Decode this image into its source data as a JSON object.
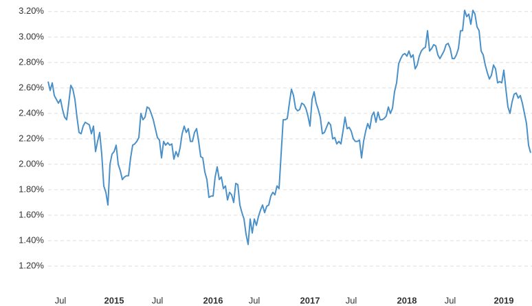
{
  "chart_data": {
    "type": "line",
    "color": "#4a90c8",
    "grid": true,
    "ylim": [
      1.0,
      3.28
    ],
    "yticks": [
      {
        "value": 1.2,
        "label": "1.20%"
      },
      {
        "value": 1.4,
        "label": "1.40%"
      },
      {
        "value": 1.6,
        "label": "1.60%"
      },
      {
        "value": 1.8,
        "label": "1.80%"
      },
      {
        "value": 2.0,
        "label": "2.00%"
      },
      {
        "value": 2.2,
        "label": "2.20%"
      },
      {
        "value": 2.4,
        "label": "2.40%"
      },
      {
        "value": 2.6,
        "label": "2.60%"
      },
      {
        "value": 2.8,
        "label": "2.80%"
      },
      {
        "value": 3.0,
        "label": "3.00%"
      },
      {
        "value": 3.2,
        "label": "3.20%"
      }
    ],
    "categories": [
      null,
      null,
      null,
      null,
      null,
      null,
      "Jul",
      null,
      null,
      null,
      null,
      null,
      null,
      null,
      null,
      null,
      null,
      null,
      null,
      null,
      null,
      null,
      null,
      null,
      null,
      null,
      null,
      null,
      null,
      null,
      null,
      null,
      "2015",
      null,
      null,
      null,
      null,
      null,
      null,
      null,
      null,
      null,
      null,
      null,
      null,
      null,
      null,
      null,
      null,
      null,
      null,
      null,
      null,
      "Jul",
      null,
      null,
      null,
      null,
      null,
      null,
      null,
      null,
      null,
      null,
      null,
      null,
      null,
      null,
      null,
      null,
      null,
      null,
      null,
      null,
      null,
      null,
      null,
      null,
      null,
      null,
      "2016",
      null,
      null,
      null,
      null,
      null,
      null,
      null,
      null,
      null,
      null,
      null,
      null,
      null,
      null,
      null,
      null,
      null,
      null,
      null,
      "Jul",
      null,
      null,
      null,
      null,
      null,
      null,
      null,
      null,
      null,
      null,
      null,
      null,
      null,
      null,
      null,
      null,
      null,
      null,
      null,
      null,
      null,
      null,
      null,
      null,
      null,
      null,
      "2017",
      null,
      null,
      null,
      null,
      null,
      null,
      null,
      null,
      null,
      null,
      null,
      null,
      null,
      null,
      null,
      null,
      null,
      null,
      null,
      "Jul",
      null,
      null,
      null,
      null,
      null,
      null,
      null,
      null,
      null,
      null,
      null,
      null,
      null,
      null,
      null,
      null,
      null,
      null,
      null,
      null,
      null,
      null,
      null,
      null,
      null,
      null,
      "2018",
      null,
      null,
      null,
      null,
      null,
      null,
      null,
      null,
      null,
      null,
      null,
      null,
      null,
      null,
      null,
      null,
      null,
      null,
      null,
      null,
      "Jul",
      null,
      null,
      null,
      null,
      null,
      null,
      null,
      null,
      null,
      null,
      null,
      null,
      null,
      null,
      null,
      null,
      null,
      null,
      null,
      null,
      null,
      null,
      null,
      null,
      null,
      "2019",
      null,
      null,
      null,
      null,
      null,
      null,
      null,
      null,
      null,
      null,
      null,
      null,
      null
    ],
    "values": [
      2.65,
      2.58,
      2.64,
      2.54,
      2.51,
      2.48,
      2.51,
      2.43,
      2.37,
      2.35,
      2.48,
      2.62,
      2.59,
      2.51,
      2.37,
      2.25,
      2.24,
      2.3,
      2.33,
      2.32,
      2.31,
      2.24,
      2.3,
      2.1,
      2.18,
      2.25,
      2.08,
      1.83,
      1.78,
      1.68,
      2.0,
      2.08,
      2.1,
      2.15,
      2.0,
      1.95,
      1.88,
      1.9,
      1.91,
      1.91,
      2.05,
      2.15,
      2.16,
      2.18,
      2.21,
      2.4,
      2.35,
      2.37,
      2.45,
      2.44,
      2.4,
      2.35,
      2.28,
      2.21,
      2.19,
      2.05,
      2.18,
      2.15,
      2.17,
      2.15,
      2.16,
      2.04,
      2.1,
      2.06,
      2.13,
      2.24,
      2.3,
      2.25,
      2.28,
      2.18,
      2.18,
      2.25,
      2.28,
      2.18,
      2.06,
      2.05,
      1.94,
      1.88,
      1.74,
      1.75,
      1.75,
      1.9,
      1.98,
      1.88,
      1.9,
      1.81,
      1.83,
      1.72,
      1.78,
      1.76,
      1.7,
      1.85,
      1.84,
      1.68,
      1.62,
      1.57,
      1.45,
      1.37,
      1.57,
      1.46,
      1.57,
      1.52,
      1.59,
      1.64,
      1.68,
      1.62,
      1.67,
      1.68,
      1.75,
      1.78,
      1.76,
      1.83,
      1.81,
      2.08,
      2.35,
      2.35,
      2.36,
      2.48,
      2.59,
      2.54,
      2.44,
      2.42,
      2.43,
      2.48,
      2.47,
      2.44,
      2.38,
      2.3,
      2.51,
      2.57,
      2.48,
      2.43,
      2.37,
      2.24,
      2.25,
      2.29,
      2.33,
      2.31,
      2.2,
      2.21,
      2.16,
      2.18,
      2.16,
      2.26,
      2.37,
      2.28,
      2.29,
      2.26,
      2.2,
      2.18,
      2.18,
      2.19,
      2.05,
      2.18,
      2.26,
      2.32,
      2.28,
      2.38,
      2.41,
      2.33,
      2.41,
      2.35,
      2.35,
      2.36,
      2.38,
      2.45,
      2.4,
      2.44,
      2.57,
      2.64,
      2.79,
      2.83,
      2.86,
      2.87,
      2.85,
      2.89,
      2.84,
      2.86,
      2.75,
      2.78,
      2.85,
      2.89,
      2.91,
      2.92,
      3.05,
      2.89,
      2.91,
      2.94,
      2.93,
      2.86,
      2.83,
      2.86,
      2.89,
      2.94,
      2.95,
      2.91,
      2.83,
      2.83,
      2.86,
      2.91,
      3.05,
      3.05,
      3.21,
      3.16,
      3.18,
      3.1,
      3.21,
      3.18,
      3.08,
      3.05,
      2.89,
      2.86,
      2.78,
      2.72,
      2.67,
      2.7,
      2.78,
      2.75,
      2.64,
      2.65,
      2.64,
      2.74,
      2.59,
      2.45,
      2.4,
      2.49,
      2.55,
      2.56,
      2.52,
      2.54,
      2.48,
      2.4,
      2.32,
      2.15,
      2.09
    ]
  }
}
